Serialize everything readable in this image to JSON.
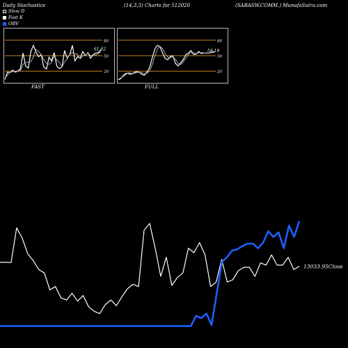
{
  "header": {
    "left": "Daily Stochastics",
    "center": "(14,3,3) Charts for 512020",
    "right": "(SABASW.COMM.) MunafaSutra.com"
  },
  "legend": [
    {
      "label": "Slow  D",
      "color": "#ffffff",
      "style": "outline"
    },
    {
      "label": "Fast K",
      "color": "#ffffff",
      "style": "filled"
    },
    {
      "label": "OBV",
      "color": "#1f5fff",
      "style": "filled"
    }
  ],
  "chart_data": [
    {
      "type": "line",
      "name": "FAST",
      "xlabel": "FAST",
      "ylim": [
        0,
        100
      ],
      "reference_lines": [
        80,
        50,
        20
      ],
      "tick_labels": [
        "80",
        "50",
        "20"
      ],
      "value_label": "61.62",
      "series": [
        {
          "name": "Fast K",
          "values": [
            4,
            18,
            17,
            22,
            18,
            20,
            25,
            55,
            30,
            26,
            58,
            70,
            57,
            48,
            52,
            28,
            24,
            47,
            40,
            56,
            30,
            25,
            28,
            60,
            45,
            52,
            70,
            40,
            48,
            45,
            58,
            50,
            56,
            45,
            52,
            55,
            56,
            61.62
          ]
        },
        {
          "name": "Slow  D",
          "values": [
            6,
            12,
            18,
            19,
            20,
            20,
            21,
            33,
            37,
            37,
            38,
            48,
            62,
            58,
            52,
            43,
            35,
            33,
            37,
            48,
            42,
            37,
            28,
            38,
            44,
            52,
            56,
            54,
            53,
            44,
            50,
            51,
            55,
            50,
            51,
            51,
            54,
            58
          ]
        }
      ]
    },
    {
      "type": "line",
      "name": "FULL",
      "xlabel": "FULL",
      "ylim": [
        0,
        100
      ],
      "reference_lines": [
        80,
        50,
        20
      ],
      "tick_labels": [
        "80",
        "50",
        "20"
      ],
      "value_label": "58.19",
      "series": [
        {
          "name": "Fast K",
          "values": [
            3,
            6,
            12,
            16,
            15,
            14,
            17,
            19,
            18,
            14,
            12,
            18,
            26,
            44,
            62,
            70,
            68,
            56,
            45,
            42,
            48,
            50,
            35,
            30,
            36,
            42,
            52,
            55,
            60,
            52,
            53,
            58,
            54,
            55,
            55,
            55,
            57,
            58.19
          ]
        },
        {
          "name": "Slow  D",
          "values": [
            4,
            7,
            10,
            14,
            17,
            16,
            16,
            17,
            18,
            17,
            15,
            16,
            20,
            32,
            48,
            62,
            68,
            64,
            55,
            47,
            46,
            48,
            43,
            35,
            33,
            38,
            45,
            52,
            56,
            56,
            54,
            56,
            56,
            55,
            55,
            55,
            56,
            57
          ]
        }
      ]
    },
    {
      "type": "line",
      "name": "Close and OBV",
      "value_label": "13033.95Close",
      "series": [
        {
          "name": "Close",
          "values": [
            0.575,
            0.575,
            0.572,
            0.88,
            0.79,
            0.65,
            0.59,
            0.51,
            0.48,
            0.33,
            0.36,
            0.26,
            0.24,
            0.3,
            0.23,
            0.28,
            0.18,
            0.14,
            0.12,
            0.2,
            0.24,
            0.19,
            0.27,
            0.34,
            0.38,
            0.36,
            0.86,
            0.92,
            0.7,
            0.45,
            0.62,
            0.37,
            0.44,
            0.48,
            0.7,
            0.66,
            0.75,
            0.64,
            0.36,
            0.4,
            0.6,
            0.4,
            0.42,
            0.5,
            0.53,
            0.53,
            0.45,
            0.57,
            0.55,
            0.64,
            0.55,
            0.55,
            0.62,
            0.51,
            0.54
          ]
        },
        {
          "name": "OBV",
          "values": [
            0.01,
            0.01,
            0.01,
            0.01,
            0.01,
            0.01,
            0.01,
            0.01,
            0.01,
            0.01,
            0.01,
            0.01,
            0.01,
            0.01,
            0.01,
            0.01,
            0.01,
            0.01,
            0.01,
            0.01,
            0.01,
            0.01,
            0.01,
            0.01,
            0.01,
            0.01,
            0.01,
            0.01,
            0.01,
            0.01,
            0.01,
            0.01,
            0.01,
            0.01,
            0.01,
            0.01,
            0.01,
            0.01,
            0.1,
            0.08,
            0.12,
            0.02,
            0.3,
            0.58,
            0.62,
            0.68,
            0.69,
            0.72,
            0.74,
            0.74,
            0.7,
            0.75,
            0.85,
            0.8,
            0.84,
            0.7,
            0.9,
            0.8,
            0.94
          ]
        }
      ]
    }
  ]
}
